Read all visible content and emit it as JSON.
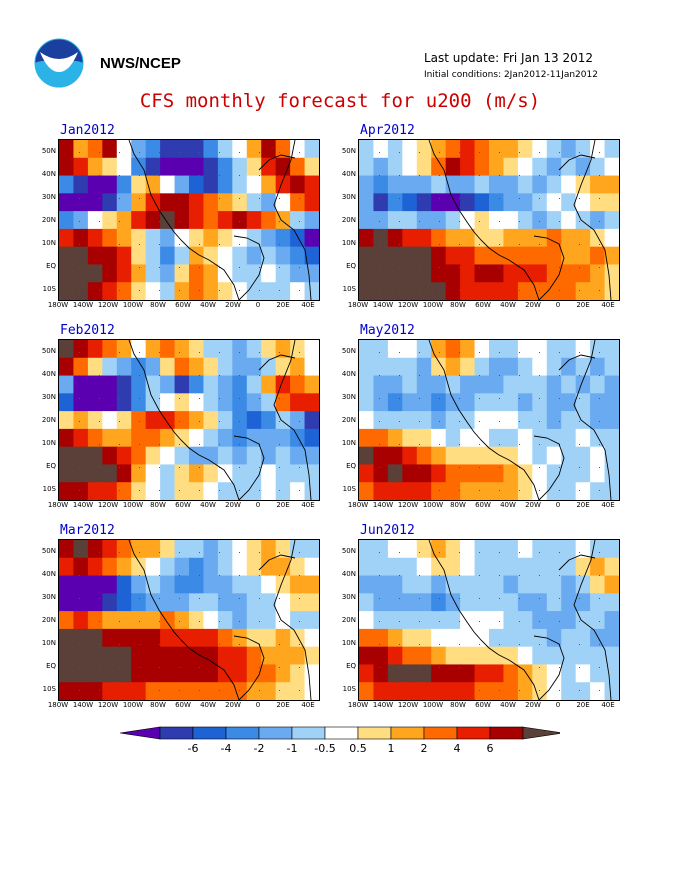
{
  "header": {
    "agency": "NWS/NCEP",
    "last_update": "Last update: Fri Jan 13 2012",
    "initial_conditions": "Initial conditions: 2Jan2012-11Jan2012",
    "title": "CFS monthly forecast for u200 (m/s)"
  },
  "panels": [
    {
      "title": "Jan2012",
      "pattern": [
        [
          "5",
          "2",
          "3",
          "5",
          "0",
          "-2",
          "-3",
          "-5",
          "-5",
          "-5",
          "-3",
          "-1",
          "0",
          "2",
          "5",
          "3",
          "0",
          "-1"
        ],
        [
          "5",
          "4",
          "2",
          "1",
          "0",
          "-3",
          "-5",
          "-6",
          "-6",
          "-6",
          "-5",
          "-3",
          "-1",
          "1",
          "4",
          "5",
          "3",
          "1"
        ],
        [
          "-3",
          "-5",
          "-6",
          "-6",
          "-3",
          "1",
          "2",
          "0",
          "-2",
          "-4",
          "-5",
          "-3",
          "-1",
          "0",
          "2",
          "4",
          "5",
          "4"
        ],
        [
          "-6",
          "-6",
          "-6",
          "-5",
          "-2",
          "2",
          "4",
          "5",
          "5",
          "4",
          "3",
          "2",
          "1",
          "-1",
          "-2",
          "0",
          "3",
          "4"
        ],
        [
          "-3",
          "-2",
          "0",
          "1",
          "2",
          "4",
          "5",
          "6",
          "5",
          "4",
          "3",
          "4",
          "5",
          "4",
          "3",
          "2",
          "-1",
          "-2"
        ],
        [
          "4",
          "5",
          "4",
          "3",
          "2",
          "1",
          "-1",
          "-2",
          "0",
          "1",
          "2",
          "1",
          "0",
          "-1",
          "-2",
          "-3",
          "-4",
          "-6"
        ],
        [
          "6",
          "6",
          "5",
          "5",
          "4",
          "1",
          "-1",
          "-3",
          "-1",
          "2",
          "1",
          "0",
          "-1",
          "-2",
          "-1",
          "-2",
          "-3",
          "-4"
        ],
        [
          "6",
          "6",
          "6",
          "5",
          "4",
          "2",
          "-1",
          "-2",
          "1",
          "3",
          "2",
          "0",
          "-1",
          "-1",
          "0",
          "-1",
          "-2",
          "-2"
        ],
        [
          "6",
          "6",
          "5",
          "4",
          "3",
          "1",
          "0",
          "-1",
          "2",
          "3",
          "2",
          "1",
          "0",
          "-1",
          "-1",
          "-1",
          "0",
          "-1"
        ]
      ]
    },
    {
      "title": "Apr2012",
      "pattern": [
        [
          "-1",
          "0",
          "-1",
          "0",
          "1",
          "2",
          "3",
          "4",
          "3",
          "2",
          "2",
          "1",
          "0",
          "-1",
          "-2",
          "-1",
          "0",
          "-1"
        ],
        [
          "-1",
          "-2",
          "-1",
          "0",
          "1",
          "3",
          "5",
          "4",
          "3",
          "2",
          "1",
          "0",
          "-1",
          "-2",
          "-1",
          "-2",
          "-1",
          "0"
        ],
        [
          "-2",
          "-3",
          "-2",
          "-2",
          "-2",
          "-1",
          "-2",
          "-2",
          "-1",
          "-2",
          "-2",
          "-1",
          "-2",
          "-1",
          "0",
          "1",
          "2",
          "2"
        ],
        [
          "-2",
          "-5",
          "-3",
          "-4",
          "-5",
          "-6",
          "-6",
          "-5",
          "-4",
          "-3",
          "-2",
          "-2",
          "-1",
          "0",
          "-1",
          "0",
          "1",
          "1"
        ],
        [
          "-2",
          "-2",
          "-1",
          "-1",
          "-2",
          "-2",
          "-1",
          "0",
          "1",
          "0",
          "0",
          "-1",
          "-2",
          "-1",
          "0",
          "-1",
          "-2",
          "-1"
        ],
        [
          "5",
          "6",
          "5",
          "4",
          "4",
          "3",
          "2",
          "2",
          "1",
          "1",
          "2",
          "2",
          "2",
          "3",
          "2",
          "2",
          "1",
          "0"
        ],
        [
          "6",
          "6",
          "6",
          "6",
          "6",
          "5",
          "4",
          "4",
          "3",
          "3",
          "3",
          "3",
          "3",
          "3",
          "2",
          "2",
          "3",
          "2"
        ],
        [
          "6",
          "6",
          "6",
          "6",
          "6",
          "5",
          "5",
          "4",
          "5",
          "5",
          "4",
          "4",
          "4",
          "3",
          "3",
          "3",
          "2",
          "1"
        ],
        [
          "6",
          "6",
          "6",
          "6",
          "6",
          "6",
          "5",
          "4",
          "4",
          "4",
          "4",
          "3",
          "3",
          "3",
          "3",
          "2",
          "2",
          "1"
        ]
      ]
    },
    {
      "title": "Feb2012",
      "pattern": [
        [
          "6",
          "5",
          "4",
          "3",
          "2",
          "0",
          "2",
          "3",
          "2",
          "1",
          "-1",
          "-1",
          "-2",
          "-1",
          "1",
          "2",
          "1",
          "0"
        ],
        [
          "5",
          "3",
          "1",
          "-1",
          "-2",
          "-3",
          "-2",
          "1",
          "3",
          "2",
          "1",
          "-1",
          "-2",
          "-2",
          "-1",
          "1",
          "2",
          "0"
        ],
        [
          "-2",
          "-6",
          "-6",
          "-6",
          "-5",
          "-3",
          "-1",
          "-2",
          "-5",
          "-3",
          "-1",
          "-2",
          "-3",
          "-1",
          "2",
          "4",
          "3",
          "2"
        ],
        [
          "-4",
          "-6",
          "-6",
          "-6",
          "-5",
          "-3",
          "-1",
          "0",
          "1",
          "0",
          "-1",
          "-2",
          "-3",
          "-2",
          "-1",
          "3",
          "4",
          "4"
        ],
        [
          "1",
          "2",
          "1",
          "0",
          "1",
          "3",
          "4",
          "4",
          "3",
          "2",
          "1",
          "-1",
          "-3",
          "-4",
          "-3",
          "-1",
          "-2",
          "-5"
        ],
        [
          "5",
          "4",
          "3",
          "2",
          "2",
          "3",
          "3",
          "2",
          "1",
          "0",
          "-1",
          "-2",
          "-3",
          "-2",
          "-2",
          "-2",
          "-3",
          "-4"
        ],
        [
          "6",
          "6",
          "6",
          "5",
          "4",
          "3",
          "1",
          "0",
          "-1",
          "-2",
          "-2",
          "-1",
          "-2",
          "-1",
          "-2",
          "-1",
          "-2",
          "-2"
        ],
        [
          "6",
          "6",
          "6",
          "6",
          "5",
          "2",
          "0",
          "-1",
          "1",
          "2",
          "1",
          "0",
          "-1",
          "-1",
          "0",
          "-1",
          "-1",
          "-1"
        ],
        [
          "5",
          "5",
          "4",
          "4",
          "3",
          "1",
          "0",
          "-1",
          "1",
          "1",
          "0",
          "-1",
          "-1",
          "-1",
          "0",
          "-1",
          "0",
          "-1"
        ]
      ]
    },
    {
      "title": "May2012",
      "pattern": [
        [
          "-1",
          "-1",
          "0",
          "0",
          "-1",
          "2",
          "3",
          "2",
          "0",
          "-1",
          "-1",
          "0",
          "0",
          "-1",
          "-1",
          "0",
          "-1",
          "-1"
        ],
        [
          "-1",
          "-1",
          "-1",
          "-1",
          "-2",
          "1",
          "2",
          "1",
          "-1",
          "-2",
          "-2",
          "-1",
          "0",
          "-1",
          "-2",
          "-1",
          "-2",
          "-1"
        ],
        [
          "-1",
          "-2",
          "-2",
          "-1",
          "-2",
          "-2",
          "-1",
          "-2",
          "-2",
          "-2",
          "-1",
          "-1",
          "-1",
          "-2",
          "-1",
          "-2",
          "-1",
          "-2"
        ],
        [
          "-1",
          "-2",
          "-3",
          "-2",
          "-2",
          "-3",
          "-2",
          "-2",
          "-1",
          "-1",
          "-1",
          "-2",
          "-1",
          "-2",
          "-2",
          "-1",
          "-2",
          "-2"
        ],
        [
          "0",
          "-1",
          "-1",
          "-1",
          "-1",
          "-2",
          "-1",
          "-1",
          "0",
          "0",
          "0",
          "-1",
          "-1",
          "-2",
          "-1",
          "-1",
          "-2",
          "-2"
        ],
        [
          "3",
          "3",
          "2",
          "1",
          "1",
          "0",
          "-1",
          "0",
          "0",
          "-1",
          "-1",
          "0",
          "-1",
          "-1",
          "-1",
          "0",
          "-1",
          "-1"
        ],
        [
          "6",
          "5",
          "5",
          "4",
          "3",
          "2",
          "1",
          "1",
          "1",
          "1",
          "1",
          "0",
          "-1",
          "0",
          "-1",
          "-1",
          "0",
          "-1"
        ],
        [
          "4",
          "5",
          "6",
          "5",
          "5",
          "4",
          "3",
          "3",
          "3",
          "3",
          "2",
          "1",
          "0",
          "-1",
          "-1",
          "-1",
          "0",
          "-1"
        ],
        [
          "3",
          "4",
          "4",
          "4",
          "4",
          "3",
          "3",
          "2",
          "2",
          "2",
          "2",
          "1",
          "0",
          "-1",
          "-1",
          "0",
          "-1",
          "-1"
        ]
      ]
    },
    {
      "title": "Mar2012",
      "pattern": [
        [
          "5",
          "6",
          "5",
          "4",
          "3",
          "2",
          "2",
          "1",
          "-1",
          "-1",
          "-2",
          "-1",
          "0",
          "1",
          "2",
          "1",
          "-1",
          "-1"
        ],
        [
          "4",
          "5",
          "4",
          "3",
          "2",
          "1",
          "0",
          "-1",
          "-2",
          "-3",
          "-2",
          "-1",
          "0",
          "1",
          "2",
          "2",
          "1",
          "0"
        ],
        [
          "-6",
          "-6",
          "-6",
          "-6",
          "-4",
          "-2",
          "-1",
          "-2",
          "-3",
          "-3",
          "-2",
          "-2",
          "-1",
          "-1",
          "0",
          "1",
          "2",
          "2"
        ],
        [
          "-6",
          "-6",
          "-6",
          "-5",
          "-4",
          "-3",
          "-2",
          "-2",
          "-2",
          "-1",
          "-1",
          "-2",
          "-2",
          "-1",
          "-1",
          "0",
          "1",
          "1"
        ],
        [
          "3",
          "4",
          "3",
          "2",
          "2",
          "2",
          "2",
          "3",
          "2",
          "1",
          "0",
          "-1",
          "-2",
          "-1",
          "-1",
          "0",
          "-1",
          "-1"
        ],
        [
          "6",
          "6",
          "6",
          "5",
          "5",
          "5",
          "5",
          "4",
          "4",
          "4",
          "4",
          "3",
          "2",
          "1",
          "1",
          "2",
          "1",
          "0"
        ],
        [
          "6",
          "6",
          "6",
          "6",
          "6",
          "5",
          "5",
          "5",
          "5",
          "5",
          "5",
          "4",
          "4",
          "3",
          "2",
          "2",
          "2",
          "1"
        ],
        [
          "6",
          "6",
          "6",
          "6",
          "6",
          "5",
          "5",
          "5",
          "5",
          "5",
          "5",
          "4",
          "4",
          "3",
          "3",
          "2",
          "1",
          "0"
        ],
        [
          "5",
          "5",
          "5",
          "4",
          "4",
          "4",
          "3",
          "3",
          "3",
          "3",
          "3",
          "3",
          "3",
          "2",
          "2",
          "1",
          "1",
          "0"
        ]
      ]
    },
    {
      "title": "Jun2012",
      "pattern": [
        [
          "-1",
          "-1",
          "0",
          "0",
          "1",
          "2",
          "1",
          "0",
          "-1",
          "-1",
          "-1",
          "0",
          "-1",
          "-1",
          "-1",
          "0",
          "-1",
          "-1"
        ],
        [
          "-1",
          "-1",
          "-1",
          "-1",
          "0",
          "1",
          "1",
          "0",
          "-1",
          "-1",
          "-1",
          "-1",
          "-1",
          "-1",
          "-1",
          "1",
          "2",
          "1"
        ],
        [
          "-2",
          "-2",
          "-2",
          "-1",
          "-1",
          "-2",
          "-1",
          "-1",
          "-1",
          "-1",
          "-2",
          "-1",
          "-1",
          "-1",
          "-2",
          "-1",
          "1",
          "2"
        ],
        [
          "-1",
          "-2",
          "-2",
          "-2",
          "-2",
          "-3",
          "-2",
          "-1",
          "-1",
          "-1",
          "-1",
          "-2",
          "-2",
          "-1",
          "-2",
          "-2",
          "-1",
          "-1"
        ],
        [
          "0",
          "-1",
          "-1",
          "-1",
          "-1",
          "-1",
          "-1",
          "0",
          "0",
          "0",
          "-1",
          "-1",
          "-2",
          "-2",
          "-2",
          "-1",
          "-1",
          "-2"
        ],
        [
          "3",
          "3",
          "2",
          "1",
          "1",
          "0",
          "0",
          "0",
          "0",
          "-1",
          "-1",
          "-1",
          "-1",
          "-2",
          "-1",
          "-1",
          "-2",
          "-2"
        ],
        [
          "5",
          "5",
          "4",
          "3",
          "3",
          "2",
          "1",
          "1",
          "1",
          "1",
          "1",
          "0",
          "-1",
          "-1",
          "-1",
          "-1",
          "-1",
          "-1"
        ],
        [
          "4",
          "5",
          "6",
          "6",
          "6",
          "5",
          "5",
          "5",
          "4",
          "4",
          "3",
          "2",
          "1",
          "0",
          "-1",
          "0",
          "-1",
          "-1"
        ],
        [
          "3",
          "4",
          "4",
          "4",
          "4",
          "4",
          "4",
          "4",
          "3",
          "3",
          "3",
          "2",
          "1",
          "0",
          "-1",
          "-1",
          "0",
          "-1"
        ]
      ]
    }
  ],
  "lat_ticks": [
    "50N",
    "40N",
    "30N",
    "20N",
    "10N",
    "EQ",
    "10S"
  ],
  "lon_ticks": [
    "180W",
    "140W",
    "120W",
    "100W",
    "80W",
    "60W",
    "40W",
    "20W",
    "0",
    "20E",
    "40E"
  ],
  "colorbar": {
    "ticks": [
      "-6",
      "-4",
      "-2",
      "-1",
      "-0.5",
      "0.5",
      "1",
      "2",
      "4",
      "6"
    ],
    "colors": {
      "-6": "#5a00b0",
      "-5": "#2e3cb0",
      "-4": "#1e63d6",
      "-3": "#3b8ae6",
      "-2": "#6aaaf0",
      "-1": "#a0d2f8",
      "0": "#ffffff",
      "1": "#ffdd80",
      "2": "#ffa51e",
      "3": "#ff6a00",
      "4": "#e81e00",
      "5": "#a80000",
      "6": "#5a4038"
    }
  }
}
